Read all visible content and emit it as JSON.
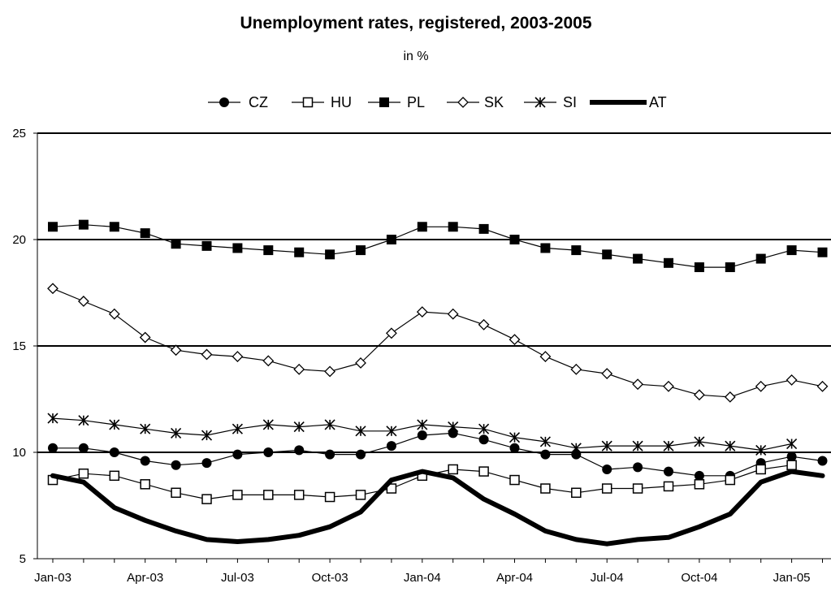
{
  "chart_data": {
    "type": "line",
    "title": "Unemployment rates, registered, 2003-2005",
    "subtitle": "in %",
    "xlabel": "",
    "ylabel": "",
    "ylim": [
      5,
      25
    ],
    "yticks": [
      5,
      10,
      15,
      20,
      25
    ],
    "grid": "horizontal at 10, 15, 20, 25",
    "legend_position": "top",
    "x_tick_labels": [
      "Jan-03",
      "Apr-03",
      "Jul-03",
      "Oct-03",
      "Jan-04",
      "Apr-04",
      "Jul-04",
      "Oct-04",
      "Jan-05"
    ],
    "x": [
      "Jan-03",
      "Feb-03",
      "Mar-03",
      "Apr-03",
      "May-03",
      "Jun-03",
      "Jul-03",
      "Aug-03",
      "Sep-03",
      "Oct-03",
      "Nov-03",
      "Dec-03",
      "Jan-04",
      "Feb-04",
      "Mar-04",
      "Apr-04",
      "May-04",
      "Jun-04",
      "Jul-04",
      "Aug-04",
      "Sep-04",
      "Oct-04",
      "Nov-04",
      "Dec-04",
      "Jan-05",
      "Feb-05"
    ],
    "series": [
      {
        "name": "CZ",
        "marker": "filled-circle",
        "color": "#000000",
        "values": [
          10.2,
          10.2,
          10.0,
          9.6,
          9.4,
          9.5,
          9.9,
          10.0,
          10.1,
          9.9,
          9.9,
          10.3,
          10.8,
          10.9,
          10.6,
          10.2,
          9.9,
          9.9,
          9.2,
          9.3,
          9.1,
          8.9,
          8.9,
          9.5,
          9.8,
          9.6
        ]
      },
      {
        "name": "HU",
        "marker": "open-square",
        "color": "#000000",
        "values": [
          8.7,
          9.0,
          8.9,
          8.5,
          8.1,
          7.8,
          8.0,
          8.0,
          8.0,
          7.9,
          8.0,
          8.3,
          8.9,
          9.2,
          9.1,
          8.7,
          8.3,
          8.1,
          8.3,
          8.3,
          8.4,
          8.5,
          8.7,
          9.2,
          9.4,
          null
        ]
      },
      {
        "name": "PL",
        "marker": "filled-square",
        "color": "#000000",
        "values": [
          20.6,
          20.7,
          20.6,
          20.3,
          19.8,
          19.7,
          19.6,
          19.5,
          19.4,
          19.3,
          19.5,
          20.0,
          20.6,
          20.6,
          20.5,
          20.0,
          19.6,
          19.5,
          19.3,
          19.1,
          18.9,
          18.7,
          18.7,
          19.1,
          19.5,
          19.4
        ]
      },
      {
        "name": "SK",
        "marker": "open-diamond",
        "color": "#000000",
        "values": [
          17.7,
          17.1,
          16.5,
          15.4,
          14.8,
          14.6,
          14.5,
          14.3,
          13.9,
          13.8,
          14.2,
          15.6,
          16.6,
          16.5,
          16.0,
          15.3,
          14.5,
          13.9,
          13.7,
          13.2,
          13.1,
          12.7,
          12.6,
          13.1,
          13.4,
          13.1
        ]
      },
      {
        "name": "SI",
        "marker": "asterisk",
        "color": "#000000",
        "values": [
          11.6,
          11.5,
          11.3,
          11.1,
          10.9,
          10.8,
          11.1,
          11.3,
          11.2,
          11.3,
          11.0,
          11.0,
          11.3,
          11.2,
          11.1,
          10.7,
          10.5,
          10.2,
          10.3,
          10.3,
          10.3,
          10.5,
          10.3,
          10.1,
          10.4,
          null
        ]
      },
      {
        "name": "AT",
        "marker": "none",
        "color": "#000000",
        "values": [
          8.9,
          8.6,
          7.4,
          6.8,
          6.3,
          5.9,
          5.8,
          5.9,
          6.1,
          6.5,
          7.2,
          8.7,
          9.1,
          8.8,
          7.8,
          7.1,
          6.3,
          5.9,
          5.7,
          5.9,
          6.0,
          6.5,
          7.1,
          8.6,
          9.1,
          8.9
        ]
      }
    ]
  }
}
